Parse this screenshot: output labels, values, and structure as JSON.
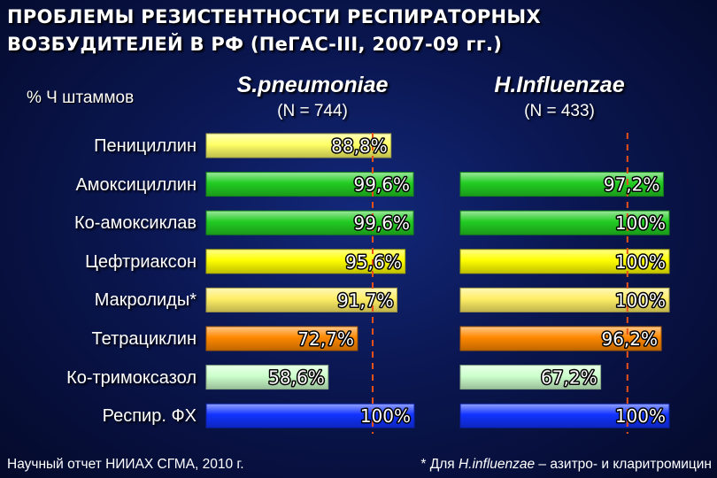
{
  "title": {
    "line1": "ПРОБЛЕМЫ РЕЗИСТЕНТНОСТИ РЕСПИРАТОРНЫХ",
    "line2": "ВОЗБУДИТЕЛЕЙ В РФ (ПеГАС-III, 2007-09 гг.)"
  },
  "axis_header": "% Ч штаммов",
  "footer": {
    "source": "Научный отчет НИИАХ СГМА, 2010 г.",
    "note_prefix": "* Для ",
    "note_italic": "H.influenzae",
    "note_suffix": " – азитро- и кларитромицин"
  },
  "chart_data": {
    "type": "bar",
    "orientation": "horizontal",
    "categories": [
      "Пенициллин",
      "Амоксициллин",
      "Ко-амоксиклав",
      "Цефтриаксон",
      "Макролиды*",
      "Тетрациклин",
      "Ко-тримоксазол",
      "Респир. ФХ"
    ],
    "series": [
      {
        "name": "S.pneumoniae",
        "subtitle": "(N = 744)",
        "values": [
          88.8,
          99.6,
          99.6,
          95.6,
          91.7,
          72.7,
          58.6,
          100
        ],
        "labels": [
          "88,8%",
          "99,6%",
          "99,6%",
          "95,6%",
          "91,7%",
          "72,7%",
          "58,6%",
          "100%"
        ]
      },
      {
        "name": "H.Influenzae",
        "subtitle": "(N = 433)",
        "values": [
          null,
          97.2,
          100,
          100,
          100,
          96.2,
          67.2,
          100
        ],
        "labels": [
          "",
          "97,2%",
          "100%",
          "100%",
          "100%",
          "96,2%",
          "67,2%",
          "100%"
        ]
      }
    ],
    "bar_colors": [
      "#ffff66",
      "#22cc22",
      "#22cc22",
      "#ffff00",
      "#ffee66",
      "#ff8800",
      "#ccffcc",
      "#1133ff"
    ],
    "reference_line": 80,
    "xlim": [
      0,
      100
    ]
  }
}
